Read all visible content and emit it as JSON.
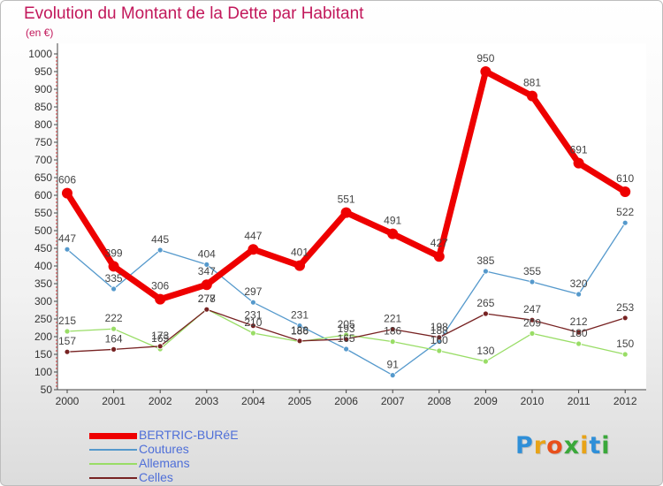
{
  "title": "Evolution du Montant de la Dette par Habitant",
  "subtitle": "(en €)",
  "logo": {
    "text": "Proxiti",
    "letters": [
      {
        "ch": "P",
        "color": "#2f8fd8"
      },
      {
        "ch": "r",
        "color": "#e8a317"
      },
      {
        "ch": "o",
        "color": "#e84f1b"
      },
      {
        "ch": "x",
        "color": "#3aa83a"
      },
      {
        "ch": "i",
        "color": "#e8a317"
      },
      {
        "ch": "t",
        "color": "#2f8fd8"
      },
      {
        "ch": "i",
        "color": "#3aa83a"
      }
    ]
  },
  "chart_data": {
    "type": "line",
    "title": "Evolution du Montant de la Dette par Habitant",
    "ylabel": "(en €)",
    "xlabel": "",
    "x": [
      "2000",
      "2001",
      "2002",
      "2003",
      "2004",
      "2005",
      "2006",
      "2007",
      "2008",
      "2009",
      "2010",
      "2011",
      "2012"
    ],
    "ylim": [
      50,
      1000
    ],
    "yticks": [
      50,
      100,
      150,
      200,
      250,
      300,
      350,
      400,
      450,
      500,
      550,
      600,
      650,
      700,
      750,
      800,
      850,
      900,
      950,
      1000
    ],
    "grid": false,
    "legend": "bottom-left",
    "series": [
      {
        "name": "BERTRIC-BURéE",
        "color": "#ee0000",
        "width": 7,
        "marker": 6,
        "values": [
          606,
          399,
          306,
          347,
          447,
          401,
          551,
          491,
          427,
          950,
          881,
          691,
          610
        ]
      },
      {
        "name": "Coutures",
        "color": "#5599cc",
        "width": 1.3,
        "marker": 3,
        "values": [
          447,
          335,
          445,
          404,
          297,
          231,
          165,
          91,
          188,
          385,
          355,
          320,
          522
        ]
      },
      {
        "name": "Allemans",
        "color": "#99dd66",
        "width": 1.3,
        "marker": 3,
        "values": [
          215,
          222,
          165,
          278,
          210,
          186,
          205,
          186,
          160,
          130,
          209,
          180,
          150
        ]
      },
      {
        "name": "Celles",
        "color": "#772222",
        "width": 1.3,
        "marker": 3,
        "values": [
          157,
          164,
          173,
          277,
          231,
          188,
          193,
          221,
          198,
          265,
          247,
          212,
          253
        ]
      }
    ]
  }
}
